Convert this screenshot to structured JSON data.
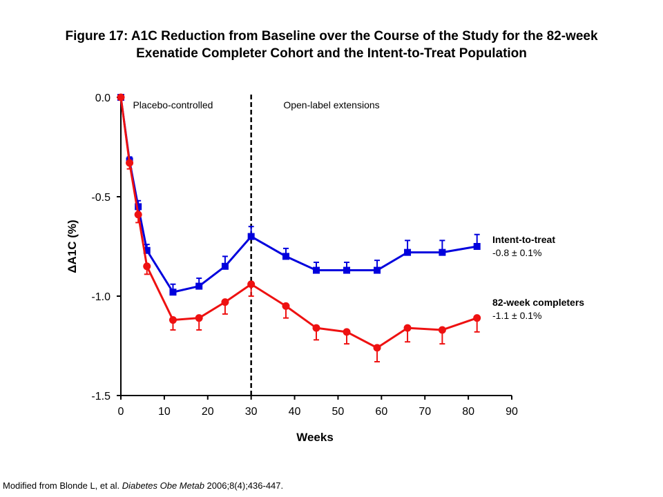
{
  "title": {
    "line1": "Figure 17: A1C Reduction from Baseline over the Course of the Study for the 82-week",
    "line2": "Exenatide Completer Cohort and the Intent-to-Treat Population"
  },
  "citation": {
    "prefix": "Modified from Blonde L, et al. ",
    "journal": "Diabetes Obe Metab",
    "suffix": " 2006;8(4);436-447."
  },
  "colors": {
    "intent_to_treat": "#0000dd",
    "completers": "#ee1111",
    "axis": "#000000"
  },
  "chart_data": {
    "type": "line",
    "xlabel": "Weeks",
    "ylabel": "ΔA1C (%)",
    "xlim": [
      0,
      90
    ],
    "ylim": [
      -1.5,
      0.0
    ],
    "xticks": [
      0,
      10,
      20,
      30,
      40,
      50,
      60,
      70,
      80,
      90
    ],
    "yticks": [
      0.0,
      -0.5,
      -1.0,
      -1.5
    ],
    "ytick_labels": [
      "0.0",
      "-0.5",
      "-1.0",
      "-1.5"
    ],
    "grid": false,
    "divider": {
      "x": 30,
      "style": "dashed"
    },
    "region_labels": [
      {
        "text": "Placebo-controlled",
        "x": 12
      },
      {
        "text": "Open-label extensions",
        "x": 48.5
      }
    ],
    "series": [
      {
        "name": "Intent-to-treat",
        "annotation": "-0.8 ± 0.1%",
        "marker": "square",
        "color": "#0000dd",
        "x": [
          0,
          2,
          4,
          6,
          12,
          18,
          24,
          30,
          38,
          45,
          52,
          59,
          66,
          74,
          82
        ],
        "y": [
          0.0,
          -0.32,
          -0.55,
          -0.77,
          -0.98,
          -0.95,
          -0.85,
          -0.7,
          -0.8,
          -0.87,
          -0.87,
          -0.87,
          -0.78,
          -0.78,
          -0.75
        ],
        "err": [
          0.0,
          0.02,
          0.03,
          0.03,
          0.04,
          0.04,
          0.05,
          0.05,
          0.04,
          0.04,
          0.04,
          0.05,
          0.06,
          0.06,
          0.06
        ]
      },
      {
        "name": "82-week completers",
        "annotation": "-1.1 ± 0.1%",
        "marker": "circle",
        "color": "#ee1111",
        "x": [
          0,
          2,
          4,
          6,
          12,
          18,
          24,
          30,
          38,
          45,
          52,
          59,
          66,
          74,
          82
        ],
        "y": [
          0.0,
          -0.33,
          -0.59,
          -0.85,
          -1.12,
          -1.11,
          -1.03,
          -0.94,
          -1.05,
          -1.16,
          -1.18,
          -1.26,
          -1.16,
          -1.17,
          -1.11
        ],
        "err": [
          0.0,
          0.03,
          0.04,
          0.04,
          0.05,
          0.06,
          0.06,
          0.06,
          0.06,
          0.06,
          0.06,
          0.07,
          0.07,
          0.07,
          0.07
        ]
      }
    ]
  }
}
